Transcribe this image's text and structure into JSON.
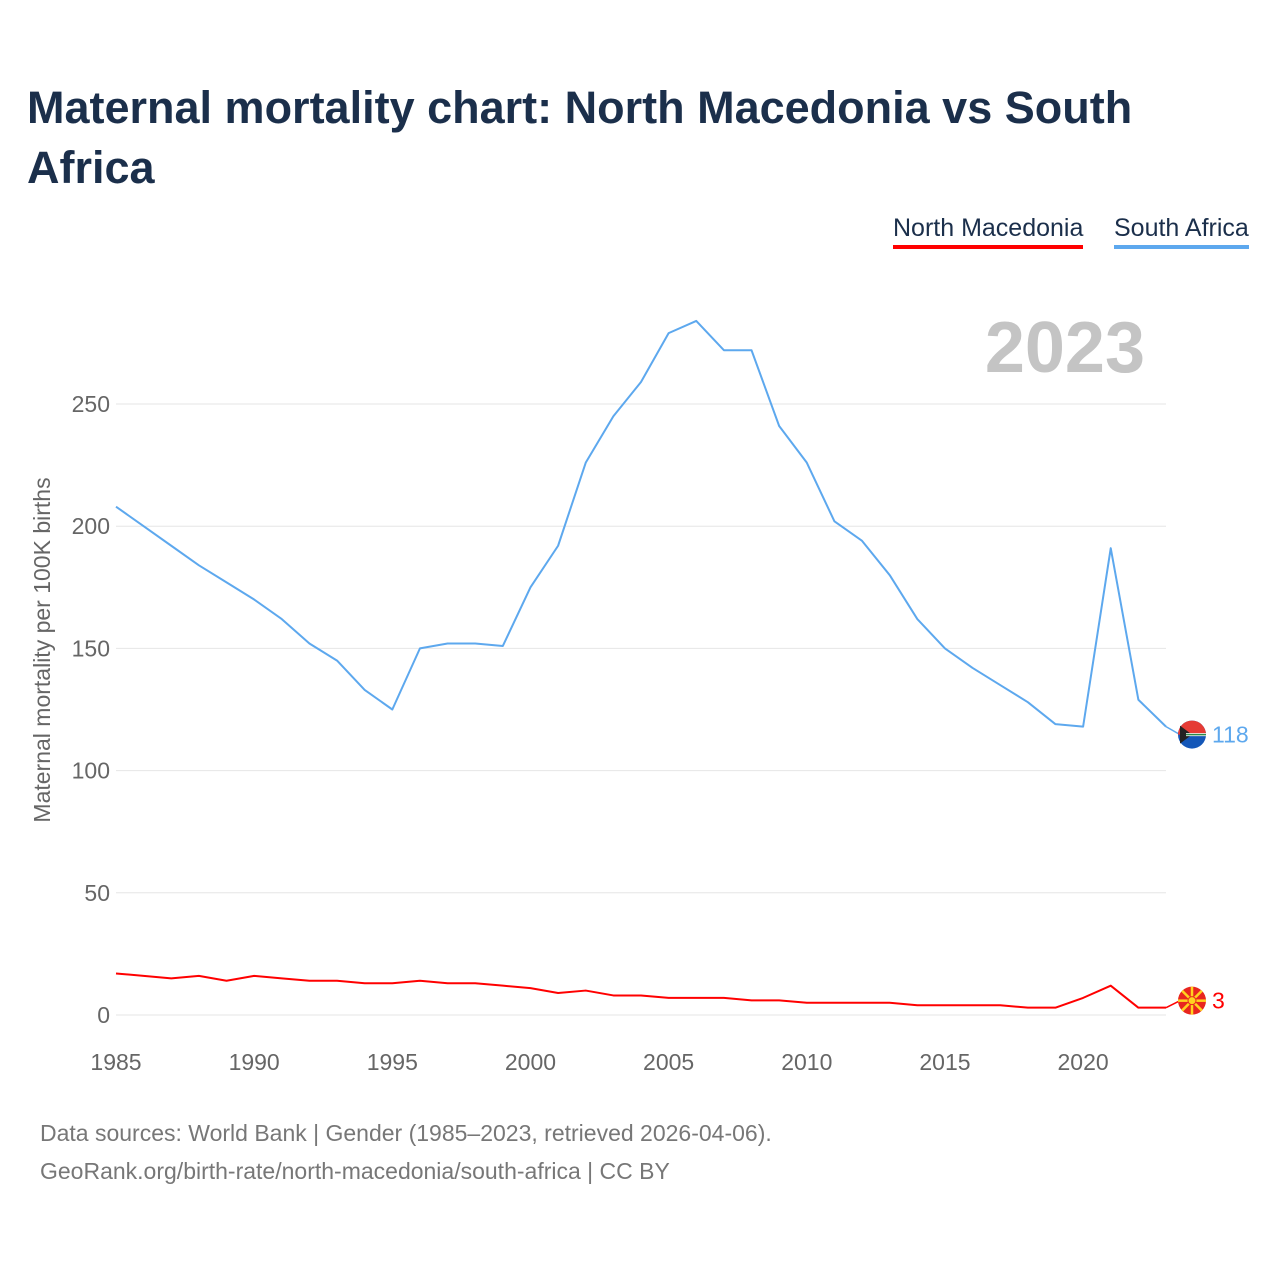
{
  "title": "Maternal mortality chart: North Macedonia vs South Africa",
  "legend": [
    {
      "label": "North Macedonia",
      "color": "#ff0000"
    },
    {
      "label": "South Africa",
      "color": "#5da8ee"
    }
  ],
  "year_label": "2023",
  "footer": {
    "line1": "Data sources: World Bank | Gender (1985–2023, retrieved 2026-04-06).",
    "line2": "GeoRank.org/birth-rate/north-macedonia/south-africa | CC BY"
  },
  "chart_data": {
    "type": "line",
    "title": "Maternal mortality chart: North Macedonia vs South Africa",
    "xlabel": "",
    "ylabel": "Maternal mortality per 100K births",
    "xlim": [
      1985,
      2023
    ],
    "ylim": [
      0,
      290
    ],
    "x_ticks": [
      1985,
      1990,
      1995,
      2000,
      2005,
      2010,
      2015,
      2020
    ],
    "y_ticks": [
      0,
      50,
      100,
      150,
      200,
      250
    ],
    "grid": true,
    "legend_position": "top-right",
    "x": [
      1985,
      1986,
      1987,
      1988,
      1989,
      1990,
      1991,
      1992,
      1993,
      1994,
      1995,
      1996,
      1997,
      1998,
      1999,
      2000,
      2001,
      2002,
      2003,
      2004,
      2005,
      2006,
      2007,
      2008,
      2009,
      2010,
      2011,
      2012,
      2013,
      2014,
      2015,
      2016,
      2017,
      2018,
      2019,
      2020,
      2021,
      2022,
      2023
    ],
    "series": [
      {
        "name": "South Africa",
        "color": "#5da8ee",
        "end_label": "118",
        "values": [
          208,
          200,
          192,
          184,
          177,
          170,
          162,
          152,
          145,
          133,
          125,
          150,
          152,
          152,
          151,
          175,
          192,
          226,
          245,
          259,
          279,
          284,
          272,
          272,
          241,
          226,
          202,
          194,
          180,
          162,
          150,
          142,
          135,
          128,
          119,
          118,
          191,
          129,
          118
        ]
      },
      {
        "name": "North Macedonia",
        "color": "#ff0000",
        "end_label": "3",
        "values": [
          17,
          16,
          15,
          16,
          14,
          16,
          15,
          14,
          14,
          13,
          13,
          14,
          13,
          13,
          12,
          11,
          9,
          10,
          8,
          8,
          7,
          7,
          7,
          6,
          6,
          5,
          5,
          5,
          5,
          4,
          4,
          4,
          4,
          3,
          3,
          7,
          12,
          3,
          3
        ]
      }
    ]
  }
}
